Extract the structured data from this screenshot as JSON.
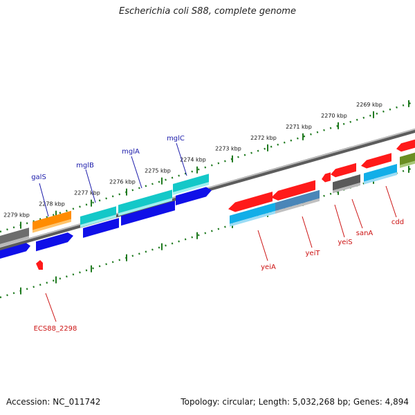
{
  "title": "Escherichia coli S88, complete genome",
  "footer": {
    "accession": "Accession: NC_011742",
    "summary": "Topology: circular; Length: 5,032,268 bp; Genes: 4,894"
  },
  "colors": {
    "forward_label": "#1a1aaa",
    "reverse_label": "#cc1111",
    "backbone": "#7a7a7a",
    "ruler": "#1f7a1f"
  },
  "scale_labels": [
    "2269 kbp",
    "2270 kbp",
    "2271 kbp",
    "2272 kbp",
    "2273 kbp",
    "2274 kbp",
    "2275 kbp",
    "2276 kbp",
    "2277 kbp",
    "2278 kbp",
    "2279 kbp"
  ],
  "forward_gene_labels": [
    "galS",
    "mglB",
    "mglA",
    "mglC"
  ],
  "reverse_gene_labels": [
    "ECS88_2298",
    "yeiA",
    "yeiT",
    "yeiS",
    "sanA",
    "cdd"
  ]
}
